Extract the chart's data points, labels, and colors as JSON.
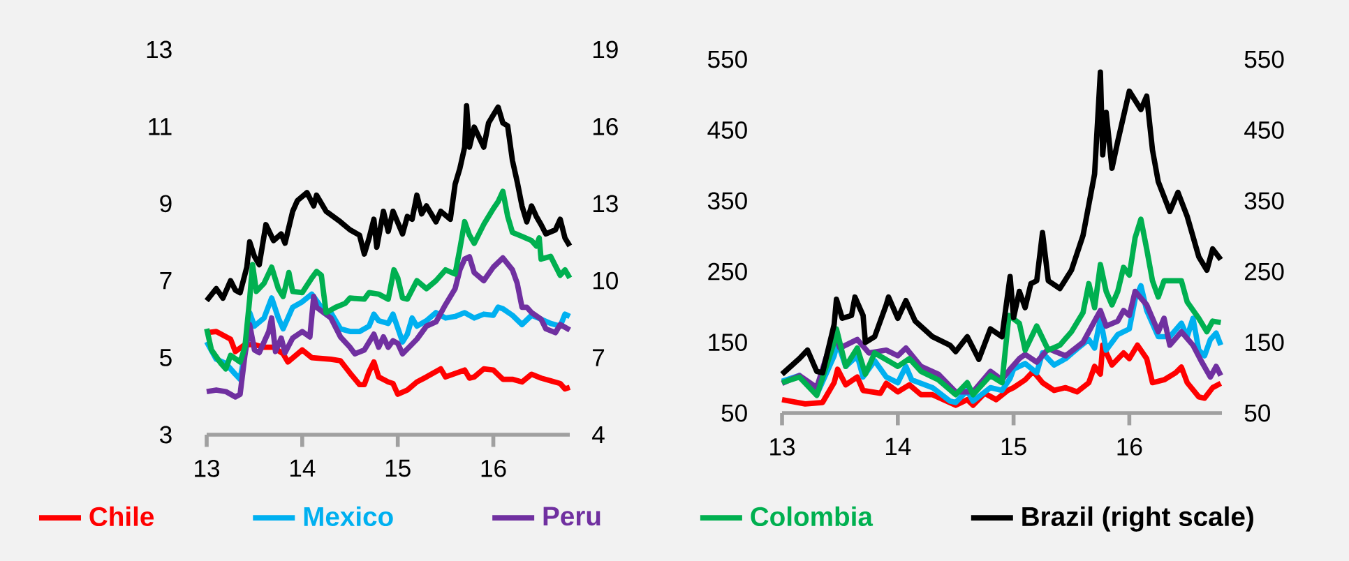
{
  "chart_data": [
    {
      "type": "line",
      "xlim": [
        13,
        16.8
      ],
      "xticks": [
        13,
        14,
        15,
        16
      ],
      "ylim": [
        3,
        13
      ],
      "yticks": [
        3,
        5,
        7,
        9,
        11,
        13
      ],
      "y2lim": [
        4,
        19
      ],
      "y2ticks": [
        4,
        7,
        10,
        13,
        16,
        19
      ],
      "grid": false,
      "legend": "bottom",
      "marker": "none",
      "line_style": "solid",
      "series": [
        {
          "name": "Chile",
          "color": "#ff0000",
          "x": [
            13.0,
            13.1,
            13.25,
            13.3,
            13.4,
            13.5,
            13.6,
            13.7,
            13.8,
            13.85,
            14.0,
            14.1,
            14.3,
            14.4,
            14.5,
            14.6,
            14.65,
            14.7,
            14.75,
            14.8,
            14.9,
            14.95,
            15.0,
            15.1,
            15.2,
            15.3,
            15.45,
            15.5,
            15.7,
            15.75,
            15.8,
            15.9,
            16.0,
            16.1,
            16.2,
            16.3,
            16.4,
            16.5,
            16.6,
            16.7,
            16.75,
            16.8
          ],
          "values": [
            5.65,
            5.68,
            5.48,
            5.16,
            5.34,
            5.34,
            5.27,
            5.27,
            5.1,
            4.89,
            5.2,
            5.0,
            4.96,
            4.92,
            4.6,
            4.3,
            4.3,
            4.64,
            4.89,
            4.5,
            4.37,
            4.33,
            4.05,
            4.16,
            4.37,
            4.5,
            4.71,
            4.5,
            4.68,
            4.47,
            4.5,
            4.71,
            4.68,
            4.44,
            4.44,
            4.37,
            4.57,
            4.47,
            4.4,
            4.33,
            4.19,
            4.23
          ]
        },
        {
          "name": "Mexico",
          "color": "#00b0f0",
          "x": [
            13.0,
            13.1,
            13.2,
            13.3,
            13.35,
            13.42,
            13.45,
            13.5,
            13.6,
            13.68,
            13.75,
            13.8,
            13.9,
            14.0,
            14.1,
            14.2,
            14.3,
            14.4,
            14.5,
            14.6,
            14.7,
            14.75,
            14.8,
            14.9,
            14.95,
            15.05,
            15.1,
            15.15,
            15.2,
            15.3,
            15.4,
            15.5,
            15.6,
            15.7,
            15.8,
            15.9,
            16.0,
            16.05,
            16.1,
            16.2,
            16.3,
            16.4,
            16.5,
            16.6,
            16.7,
            16.75,
            16.8
          ],
          "values": [
            5.41,
            4.96,
            4.85,
            4.57,
            4.44,
            5.41,
            6.17,
            5.82,
            6.03,
            6.55,
            6.03,
            5.75,
            6.31,
            6.45,
            6.65,
            6.31,
            6.17,
            5.75,
            5.68,
            5.68,
            5.82,
            6.13,
            5.96,
            5.89,
            6.13,
            5.41,
            5.61,
            6.03,
            5.82,
            5.96,
            6.17,
            6.03,
            6.07,
            6.17,
            6.03,
            6.13,
            6.1,
            6.31,
            6.27,
            6.1,
            5.86,
            6.1,
            6.0,
            5.89,
            5.82,
            6.13,
            6.07
          ]
        },
        {
          "name": "Peru",
          "color": "#7030a0",
          "x": [
            13.0,
            13.1,
            13.2,
            13.3,
            13.35,
            13.4,
            13.45,
            13.5,
            13.55,
            13.65,
            13.68,
            13.72,
            13.78,
            13.82,
            13.9,
            14.0,
            14.08,
            14.12,
            14.15,
            14.3,
            14.4,
            14.5,
            14.55,
            14.65,
            14.75,
            14.8,
            14.85,
            14.9,
            14.95,
            15.0,
            15.05,
            15.2,
            15.3,
            15.4,
            15.5,
            15.6,
            15.65,
            15.7,
            15.75,
            15.8,
            15.9,
            16.0,
            16.1,
            16.2,
            16.25,
            16.3,
            16.35,
            16.4,
            16.5,
            16.55,
            16.65,
            16.7,
            16.8
          ],
          "values": [
            4.12,
            4.16,
            4.12,
            3.98,
            4.05,
            5.06,
            5.86,
            5.2,
            5.13,
            5.68,
            6.03,
            5.16,
            5.51,
            5.13,
            5.51,
            5.68,
            5.54,
            6.59,
            6.31,
            6.03,
            5.54,
            5.27,
            5.1,
            5.2,
            5.61,
            5.27,
            5.54,
            5.27,
            5.44,
            5.37,
            5.1,
            5.48,
            5.82,
            5.93,
            6.38,
            6.79,
            7.28,
            7.56,
            7.62,
            7.21,
            7.0,
            7.35,
            7.59,
            7.28,
            6.93,
            6.31,
            6.31,
            6.17,
            6.0,
            5.75,
            5.65,
            5.86,
            5.72
          ]
        },
        {
          "name": "Colombia",
          "color": "#00b050",
          "x": [
            13.0,
            13.05,
            13.15,
            13.2,
            13.25,
            13.35,
            13.4,
            13.45,
            13.48,
            13.52,
            13.6,
            13.68,
            13.75,
            13.8,
            13.86,
            13.9,
            14.0,
            14.1,
            14.15,
            14.2,
            14.25,
            14.35,
            14.45,
            14.5,
            14.65,
            14.7,
            14.8,
            14.9,
            14.96,
            15.0,
            15.05,
            15.1,
            15.2,
            15.3,
            15.4,
            15.5,
            15.6,
            15.65,
            15.7,
            15.75,
            15.8,
            15.9,
            16.0,
            16.05,
            16.1,
            16.15,
            16.2,
            16.3,
            16.4,
            16.45,
            16.48,
            16.5,
            16.6,
            16.7,
            16.75,
            16.8
          ],
          "values": [
            5.75,
            5.2,
            4.85,
            4.71,
            5.06,
            4.89,
            5.27,
            6.52,
            7.42,
            6.72,
            6.93,
            7.35,
            6.79,
            6.59,
            7.21,
            6.72,
            6.69,
            7.07,
            7.24,
            7.14,
            6.17,
            6.31,
            6.41,
            6.55,
            6.52,
            6.69,
            6.65,
            6.52,
            7.28,
            7.07,
            6.55,
            6.52,
            7.0,
            6.79,
            7.0,
            7.28,
            7.17,
            7.83,
            8.53,
            8.18,
            7.97,
            8.46,
            8.87,
            9.05,
            9.32,
            8.67,
            8.25,
            8.15,
            8.04,
            7.9,
            8.11,
            7.56,
            7.63,
            7.14,
            7.28,
            7.07
          ]
        },
        {
          "name": "Brazil (right scale)",
          "color": "#000000",
          "axis": "y2",
          "x": [
            13.0,
            13.1,
            13.17,
            13.25,
            13.3,
            13.35,
            13.42,
            13.45,
            13.5,
            13.55,
            13.62,
            13.7,
            13.78,
            13.82,
            13.9,
            13.95,
            14.05,
            14.12,
            14.15,
            14.25,
            14.4,
            14.5,
            14.6,
            14.65,
            14.7,
            14.75,
            14.78,
            14.85,
            14.9,
            14.95,
            15.05,
            15.1,
            15.15,
            15.2,
            15.25,
            15.3,
            15.35,
            15.4,
            15.45,
            15.55,
            15.6,
            15.65,
            15.7,
            15.72,
            15.75,
            15.8,
            15.9,
            15.95,
            16.0,
            16.05,
            16.1,
            16.15,
            16.2,
            16.25,
            16.3,
            16.35,
            16.4,
            16.45,
            16.5,
            16.55,
            16.65,
            16.7,
            16.75,
            16.8
          ],
          "values": [
            9.22,
            9.69,
            9.32,
            10.0,
            9.63,
            9.53,
            10.52,
            11.51,
            10.94,
            10.62,
            12.18,
            11.56,
            11.82,
            11.46,
            12.7,
            13.12,
            13.43,
            12.91,
            13.33,
            12.7,
            12.29,
            11.98,
            11.77,
            11.04,
            11.66,
            12.39,
            11.3,
            12.7,
            11.92,
            12.7,
            11.82,
            12.5,
            12.39,
            13.33,
            12.6,
            12.91,
            12.6,
            12.29,
            12.7,
            12.39,
            13.75,
            14.37,
            15.2,
            16.81,
            15.2,
            15.98,
            15.2,
            16.14,
            16.45,
            16.76,
            16.14,
            16.03,
            14.68,
            13.85,
            12.91,
            12.29,
            12.91,
            12.5,
            12.18,
            11.82,
            11.98,
            12.39,
            11.66,
            11.35
          ]
        }
      ]
    },
    {
      "type": "line",
      "xlim": [
        13,
        16.8
      ],
      "xticks": [
        13,
        14,
        15,
        16
      ],
      "ylim": [
        50,
        550
      ],
      "yticks": [
        50,
        150,
        250,
        350,
        450,
        550
      ],
      "y2lim": [
        50,
        550
      ],
      "y2ticks": [
        50,
        150,
        250,
        350,
        450,
        550
      ],
      "grid": false,
      "marker": "none",
      "line_style": "solid",
      "series": [
        {
          "color": "#ff0000",
          "x": [
            13.0,
            13.2,
            13.35,
            13.45,
            13.48,
            13.55,
            13.65,
            13.7,
            13.85,
            13.9,
            14.0,
            14.1,
            14.2,
            14.3,
            14.5,
            14.6,
            14.65,
            14.75,
            14.85,
            14.95,
            15.0,
            15.1,
            15.17,
            15.25,
            15.35,
            15.45,
            15.55,
            15.65,
            15.7,
            15.75,
            15.77,
            15.85,
            15.95,
            16.0,
            16.07,
            16.15,
            16.2,
            16.3,
            16.4,
            16.45,
            16.5,
            16.6,
            16.65,
            16.72,
            16.79
          ],
          "values": [
            69,
            63,
            65,
            93,
            112,
            90,
            101,
            82,
            78,
            92,
            80,
            90,
            76,
            76,
            61,
            69,
            61,
            78,
            69,
            82,
            86,
            97,
            109,
            93,
            82,
            86,
            80,
            93,
            116,
            105,
            146,
            118,
            135,
            127,
            146,
            127,
            93,
            97,
            107,
            115,
            93,
            73,
            71,
            86,
            92
          ]
        },
        {
          "color": "#00b0f0",
          "x": [
            13.0,
            13.15,
            13.3,
            13.45,
            13.48,
            13.55,
            13.65,
            13.7,
            13.8,
            13.9,
            14.0,
            14.07,
            14.12,
            14.3,
            14.45,
            14.5,
            14.6,
            14.65,
            14.8,
            14.9,
            14.97,
            15.0,
            15.1,
            15.2,
            15.25,
            15.35,
            15.45,
            15.55,
            15.65,
            15.7,
            15.75,
            15.8,
            15.9,
            16.0,
            16.05,
            16.1,
            16.15,
            16.25,
            16.35,
            16.45,
            16.5,
            16.55,
            16.6,
            16.65,
            16.7,
            16.75,
            16.79
          ],
          "values": [
            95,
            103,
            76,
            131,
            150,
            116,
            131,
            101,
            124,
            101,
            93,
            116,
            97,
            86,
            67,
            65,
            82,
            67,
            86,
            82,
            99,
            112,
            120,
            107,
            135,
            118,
            127,
            141,
            154,
            142,
            184,
            139,
            161,
            169,
            211,
            230,
            195,
            158,
            158,
            177,
            158,
            184,
            139,
            131,
            154,
            163,
            146
          ]
        },
        {
          "color": "#7030a0",
          "x": [
            13.0,
            13.15,
            13.3,
            13.45,
            13.5,
            13.65,
            13.75,
            13.9,
            14.0,
            14.07,
            14.2,
            14.35,
            14.5,
            14.65,
            14.8,
            14.9,
            14.97,
            15.05,
            15.1,
            15.2,
            15.3,
            15.45,
            15.6,
            15.7,
            15.75,
            15.8,
            15.9,
            15.95,
            16.0,
            16.05,
            16.15,
            16.25,
            16.3,
            16.35,
            16.45,
            16.55,
            16.62,
            16.7,
            16.75,
            16.79
          ],
          "values": [
            92,
            103,
            86,
            165,
            142,
            154,
            135,
            139,
            131,
            142,
            116,
            105,
            80,
            80,
            109,
            97,
            112,
            127,
            133,
            122,
            141,
            131,
            150,
            180,
            195,
            173,
            180,
            195,
            188,
            222,
            203,
            165,
            184,
            146,
            165,
            146,
            124,
            101,
            116,
            103
          ]
        },
        {
          "color": "#00b050",
          "x": [
            13.0,
            13.15,
            13.3,
            13.45,
            13.47,
            13.55,
            13.65,
            13.72,
            13.8,
            14.0,
            14.1,
            14.2,
            14.35,
            14.5,
            14.6,
            14.65,
            14.8,
            14.9,
            14.96,
            15.05,
            15.1,
            15.2,
            15.3,
            15.4,
            15.5,
            15.6,
            15.65,
            15.7,
            15.75,
            15.8,
            15.85,
            15.9,
            15.95,
            16.0,
            16.05,
            16.1,
            16.15,
            16.2,
            16.25,
            16.3,
            16.45,
            16.5,
            16.6,
            16.67,
            16.72,
            16.79
          ],
          "values": [
            93,
            101,
            75,
            150,
            169,
            116,
            142,
            105,
            135,
            116,
            127,
            109,
            97,
            76,
            93,
            76,
            103,
            93,
            188,
            177,
            139,
            173,
            139,
            146,
            165,
            192,
            233,
            199,
            260,
            222,
            203,
            222,
            256,
            245,
            298,
            324,
            282,
            237,
            214,
            237,
            237,
            207,
            184,
            165,
            180,
            178
          ]
        },
        {
          "color": "#000000",
          "axis": "y2",
          "x": [
            13.0,
            13.15,
            13.22,
            13.3,
            13.35,
            13.45,
            13.47,
            13.52,
            13.6,
            13.63,
            13.7,
            13.72,
            13.8,
            13.9,
            13.92,
            14.0,
            14.07,
            14.15,
            14.3,
            14.45,
            14.5,
            14.6,
            14.7,
            14.8,
            14.9,
            14.97,
            15.0,
            15.05,
            15.1,
            15.15,
            15.2,
            15.25,
            15.3,
            15.4,
            15.5,
            15.6,
            15.7,
            15.75,
            15.77,
            15.8,
            15.85,
            15.9,
            16.0,
            16.1,
            16.15,
            16.2,
            16.25,
            16.35,
            16.42,
            16.5,
            16.6,
            16.67,
            16.72,
            16.79
          ],
          "values": [
            105,
            127,
            139,
            109,
            107,
            175,
            211,
            184,
            188,
            214,
            188,
            150,
            158,
            203,
            214,
            184,
            209,
            180,
            158,
            146,
            137,
            158,
            126,
            169,
            158,
            243,
            185,
            222,
            199,
            233,
            237,
            305,
            237,
            226,
            252,
            301,
            388,
            532,
            415,
            475,
            396,
            434,
            505,
            479,
            498,
            422,
            377,
            335,
            362,
            328,
            271,
            252,
            282,
            267
          ]
        }
      ]
    }
  ]
}
